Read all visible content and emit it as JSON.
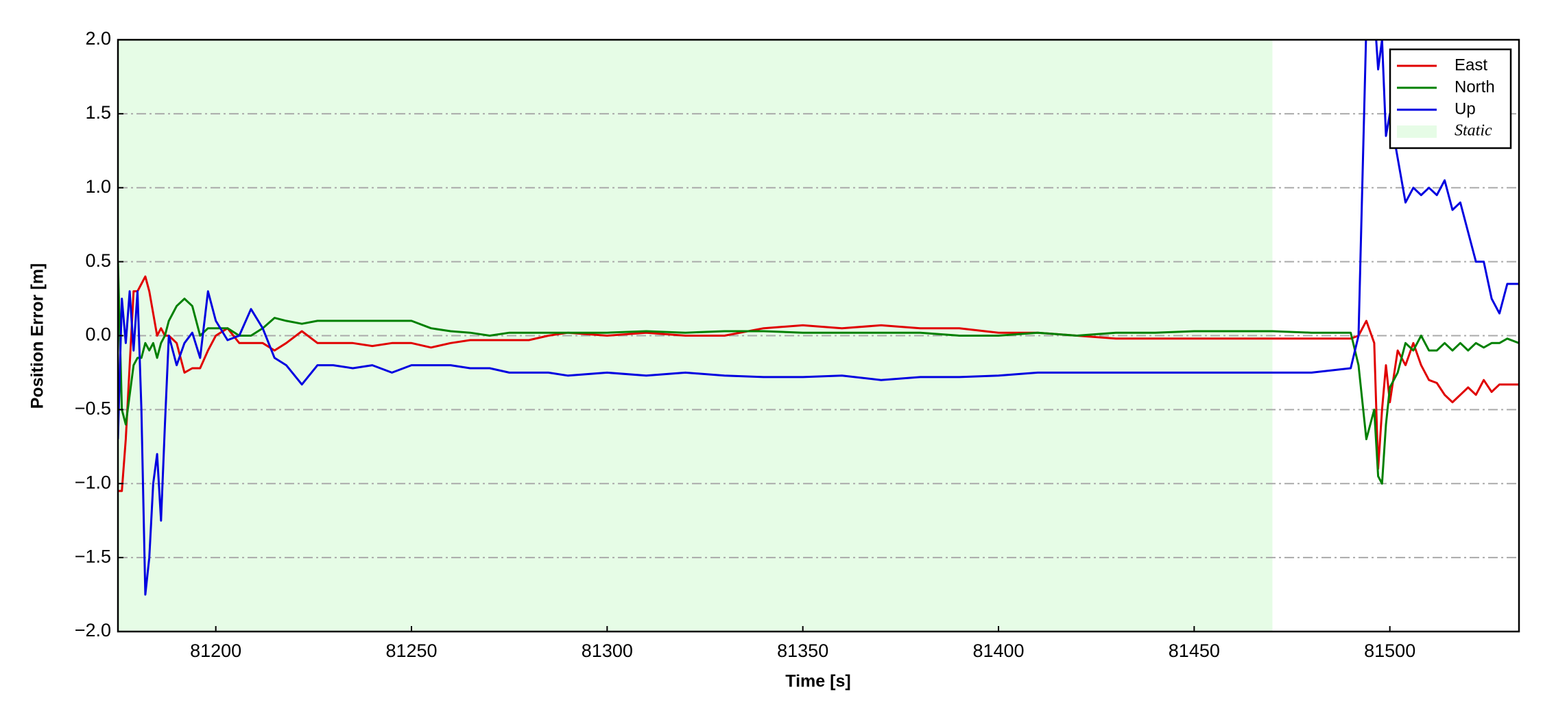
{
  "chart_data": {
    "type": "line",
    "xlabel": "Time [s]",
    "ylabel": "Position Error [m]",
    "x": [
      81175,
      81176,
      81177,
      81178,
      81179,
      81180,
      81181,
      81182,
      81183,
      81184,
      81185,
      81186,
      81187,
      81188,
      81190,
      81192,
      81194,
      81196,
      81198,
      81200,
      81203,
      81206,
      81209,
      81212,
      81215,
      81218,
      81222,
      81226,
      81230,
      81235,
      81240,
      81245,
      81250,
      81255,
      81260,
      81265,
      81270,
      81275,
      81280,
      81285,
      81290,
      81300,
      81310,
      81320,
      81330,
      81340,
      81350,
      81360,
      81370,
      81380,
      81390,
      81400,
      81410,
      81420,
      81430,
      81440,
      81450,
      81460,
      81470,
      81480,
      81490,
      81492,
      81494,
      81496,
      81497,
      81498,
      81499,
      81500,
      81502,
      81504,
      81506,
      81508,
      81510,
      81512,
      81514,
      81516,
      81518,
      81520,
      81522,
      81524,
      81526,
      81528,
      81530,
      81533
    ],
    "series": [
      {
        "name": "East",
        "color": "#e00000",
        "values": [
          -1.05,
          -1.05,
          -0.7,
          -0.2,
          0.3,
          0.3,
          0.35,
          0.4,
          0.3,
          0.15,
          0.0,
          0.05,
          0.0,
          0.0,
          -0.05,
          -0.25,
          -0.22,
          -0.22,
          -0.1,
          0.0,
          0.05,
          -0.05,
          -0.05,
          -0.05,
          -0.1,
          -0.05,
          0.03,
          -0.05,
          -0.05,
          -0.05,
          -0.07,
          -0.05,
          -0.05,
          -0.08,
          -0.05,
          -0.03,
          -0.03,
          -0.03,
          -0.03,
          0.0,
          0.02,
          0.0,
          0.02,
          0.0,
          0.0,
          0.05,
          0.07,
          0.05,
          0.07,
          0.05,
          0.05,
          0.02,
          0.02,
          0.0,
          -0.02,
          -0.02,
          -0.02,
          -0.02,
          -0.02,
          -0.02,
          -0.02,
          0.0,
          0.1,
          -0.05,
          -0.9,
          -0.5,
          -0.2,
          -0.45,
          -0.1,
          -0.2,
          -0.05,
          -0.2,
          -0.3,
          -0.32,
          -0.4,
          -0.45,
          -0.4,
          -0.35,
          -0.4,
          -0.3,
          -0.38,
          -0.33,
          -0.33,
          -0.33
        ]
      },
      {
        "name": "North",
        "color": "#008000",
        "values": [
          0.5,
          -0.5,
          -0.6,
          -0.4,
          -0.2,
          -0.15,
          -0.15,
          -0.05,
          -0.1,
          -0.05,
          -0.15,
          -0.05,
          0.0,
          0.1,
          0.2,
          0.25,
          0.2,
          0.0,
          0.05,
          0.05,
          0.05,
          0.0,
          0.0,
          0.05,
          0.12,
          0.1,
          0.08,
          0.1,
          0.1,
          0.1,
          0.1,
          0.1,
          0.1,
          0.05,
          0.03,
          0.02,
          0.0,
          0.02,
          0.02,
          0.02,
          0.02,
          0.02,
          0.03,
          0.02,
          0.03,
          0.03,
          0.02,
          0.02,
          0.02,
          0.02,
          0.0,
          0.0,
          0.02,
          0.0,
          0.02,
          0.02,
          0.03,
          0.03,
          0.03,
          0.02,
          0.02,
          -0.2,
          -0.7,
          -0.5,
          -0.95,
          -1.0,
          -0.6,
          -0.35,
          -0.25,
          -0.05,
          -0.1,
          0.0,
          -0.1,
          -0.1,
          -0.05,
          -0.1,
          -0.05,
          -0.1,
          -0.05,
          -0.08,
          -0.05,
          -0.05,
          -0.02,
          -0.05
        ]
      },
      {
        "name": "Up",
        "color": "#0000e0",
        "values": [
          -0.7,
          0.25,
          -0.05,
          0.3,
          -0.1,
          0.3,
          -0.5,
          -1.75,
          -1.5,
          -1.0,
          -0.8,
          -1.25,
          -0.6,
          0.0,
          -0.2,
          -0.05,
          0.02,
          -0.15,
          0.3,
          0.1,
          -0.03,
          0.0,
          0.18,
          0.05,
          -0.15,
          -0.2,
          -0.33,
          -0.2,
          -0.2,
          -0.22,
          -0.2,
          -0.25,
          -0.2,
          -0.2,
          -0.2,
          -0.22,
          -0.22,
          -0.25,
          -0.25,
          -0.25,
          -0.27,
          -0.25,
          -0.27,
          -0.25,
          -0.27,
          -0.28,
          -0.28,
          -0.27,
          -0.3,
          -0.28,
          -0.28,
          -0.27,
          -0.25,
          -0.25,
          -0.25,
          -0.25,
          -0.25,
          -0.25,
          -0.25,
          -0.25,
          -0.22,
          0.0,
          2.1,
          2.2,
          1.8,
          2.0,
          1.35,
          1.5,
          1.2,
          0.9,
          1.0,
          0.95,
          1.0,
          0.95,
          1.05,
          0.85,
          0.9,
          0.7,
          0.5,
          0.5,
          0.25,
          0.15,
          0.35,
          0.35
        ]
      }
    ],
    "shaded_regions": [
      {
        "name": "Static",
        "color": "#e6fce6",
        "x": [
          81175,
          81470
        ]
      }
    ],
    "xlim": [
      81175,
      81533
    ],
    "xticks": [
      81200,
      81250,
      81300,
      81350,
      81400,
      81450,
      81500
    ],
    "ylim": [
      -2,
      2
    ],
    "yticks": [
      {
        "value": -2,
        "label": "−2.0"
      },
      {
        "value": -1.5,
        "label": "−1.5"
      },
      {
        "value": -1,
        "label": "−1.0"
      },
      {
        "value": -0.5,
        "label": "−0.5"
      },
      {
        "value": 0,
        "label": "0.0"
      },
      {
        "value": 0.5,
        "label": "0.5"
      },
      {
        "value": 1,
        "label": "1.0"
      },
      {
        "value": 1.5,
        "label": "1.5"
      },
      {
        "value": 2,
        "label": "2.0"
      }
    ],
    "grid": true,
    "legend": "upper right"
  }
}
